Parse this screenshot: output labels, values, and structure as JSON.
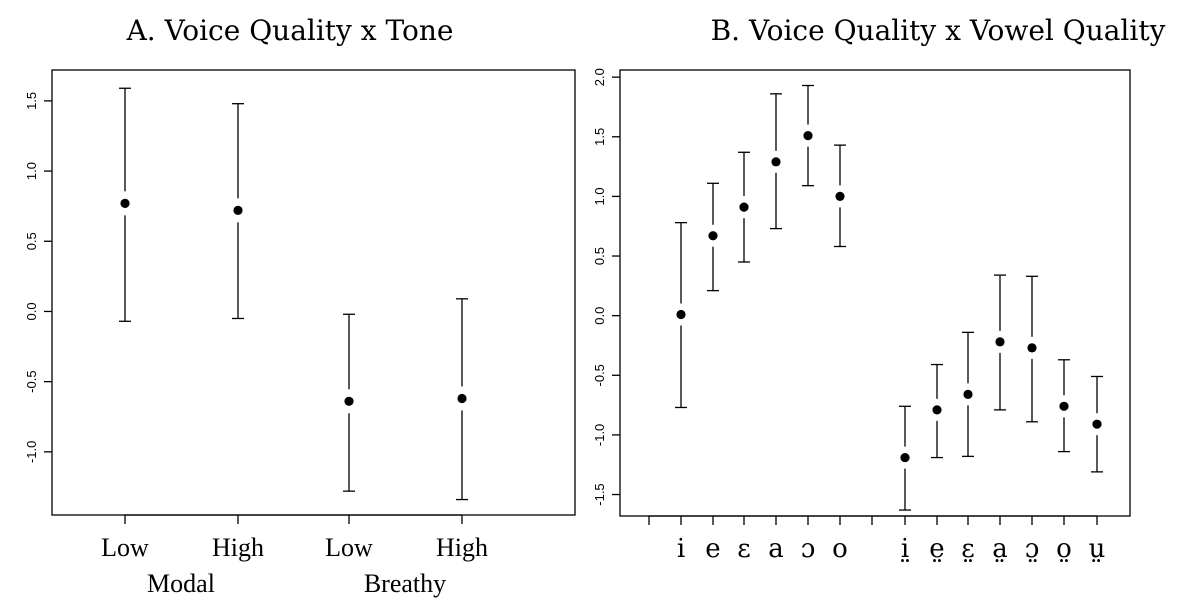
{
  "chart_data": [
    {
      "type": "scatter",
      "title": "A. Voice Quality x Tone",
      "categories": [
        "Low",
        "High",
        "Low",
        "High"
      ],
      "groups": [
        "Modal",
        "Breathy"
      ],
      "points": [
        {
          "group": "Modal",
          "label": "Low",
          "mean": 0.77,
          "lower": -0.07,
          "upper": 1.59
        },
        {
          "group": "Modal",
          "label": "High",
          "mean": 0.72,
          "upper": 1.48,
          "lower": -0.05
        },
        {
          "group": "Breathy",
          "label": "Low",
          "mean": -0.64,
          "upper": -0.02,
          "lower": -1.28
        },
        {
          "group": "Breathy",
          "label": "High",
          "mean": -0.62,
          "upper": 0.09,
          "lower": -1.34
        }
      ],
      "ylim": [
        -1.45,
        1.72
      ],
      "yticks": [
        "-1.0",
        "-0.5",
        "0.0",
        "0.5",
        "1.0",
        "1.5"
      ],
      "grid": false
    },
    {
      "type": "scatter",
      "title": "B. Voice Quality x Vowel Quality",
      "categories": [
        "i",
        "e",
        "ɛ",
        "a",
        "ɔ",
        "o",
        "i̤",
        "e̤",
        "ɛ̤",
        "a̤",
        "ɔ̤",
        "o̤",
        "ṳ"
      ],
      "points": [
        {
          "label": "i",
          "mean": 0.01,
          "upper": 0.78,
          "lower": -0.77
        },
        {
          "label": "e",
          "mean": 0.67,
          "upper": 1.11,
          "lower": 0.21
        },
        {
          "label": "ɛ",
          "mean": 0.91,
          "upper": 1.37,
          "lower": 0.45
        },
        {
          "label": "a",
          "mean": 1.29,
          "upper": 1.86,
          "lower": 0.73
        },
        {
          "label": "ɔ",
          "mean": 1.51,
          "upper": 1.93,
          "lower": 1.09
        },
        {
          "label": "o",
          "mean": 1.0,
          "upper": 1.43,
          "lower": 0.58
        },
        {
          "label": "i̤",
          "mean": -1.19,
          "upper": -0.76,
          "lower": -1.63
        },
        {
          "label": "e̤",
          "mean": -0.79,
          "upper": -0.41,
          "lower": -1.19
        },
        {
          "label": "ɛ̤",
          "mean": -0.66,
          "upper": -0.14,
          "lower": -1.18
        },
        {
          "label": "a̤",
          "mean": -0.22,
          "upper": 0.34,
          "lower": -0.79
        },
        {
          "label": "ɔ̤",
          "mean": -0.27,
          "upper": 0.33,
          "lower": -0.89
        },
        {
          "label": "o̤",
          "mean": -0.76,
          "upper": -0.37,
          "lower": -1.14
        },
        {
          "label": "ṳ",
          "mean": -0.91,
          "upper": -0.51,
          "lower": -1.31
        }
      ],
      "ylim": [
        -1.68,
        2.06
      ],
      "yticks": [
        "-1.5",
        "-1.0",
        "-0.5",
        "0.0",
        "0.5",
        "1.0",
        "1.5",
        "2.0"
      ],
      "grid": false
    }
  ]
}
